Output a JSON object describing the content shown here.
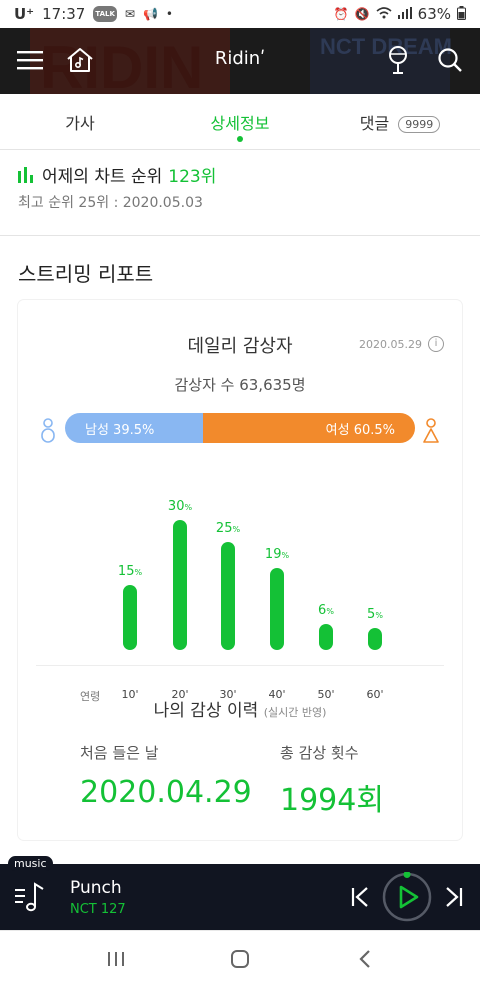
{
  "status": {
    "carrier": "U⁺",
    "time": "17:37",
    "battery": "63%"
  },
  "appbar": {
    "title": "Ridinʹ",
    "icons": [
      "menu-icon",
      "home-music-icon",
      "microphone-icon",
      "search-icon"
    ]
  },
  "tabs": [
    {
      "label": "가사"
    },
    {
      "label": "상세정보"
    },
    {
      "label": "댓글",
      "badge": "9999"
    }
  ],
  "chart_rank": {
    "prefix": "어제의 차트 순위",
    "rank": "123위",
    "best": "최고 순위 25위 : 2020.05.03"
  },
  "report": {
    "title": "스트리밍 리포트",
    "daily_title": "데일리 감상자",
    "date": "2020.05.29",
    "listeners": "감상자 수 63,635명",
    "male_label": "남성 39.5%",
    "female_label": "여성 60.5%",
    "male_share": 39.5,
    "age_axis_label": "연령",
    "history_title": "나의 감상 이력",
    "history_note": "(실시간 반영)",
    "first_listen_label": "처음 들은 날",
    "first_listen_value": "2020.04.29",
    "total_label": "총 감상 횟수",
    "total_value": "1994회"
  },
  "chart_data": {
    "type": "bar",
    "categories": [
      "10'",
      "20'",
      "30'",
      "40'",
      "50'",
      "60'"
    ],
    "values": [
      15,
      30,
      25,
      19,
      6,
      5
    ],
    "value_suffix": "%",
    "xlabel": "연령",
    "ylim": [
      0,
      30
    ],
    "grid": false,
    "color": "#14c136"
  },
  "player": {
    "tag": "music",
    "song": "Punch",
    "artist": "NCT 127"
  },
  "colors": {
    "accent": "#14c136",
    "male": "#89b7f2",
    "female": "#f28a2c",
    "appbar": "#1b1b1b",
    "player": "#111521"
  }
}
